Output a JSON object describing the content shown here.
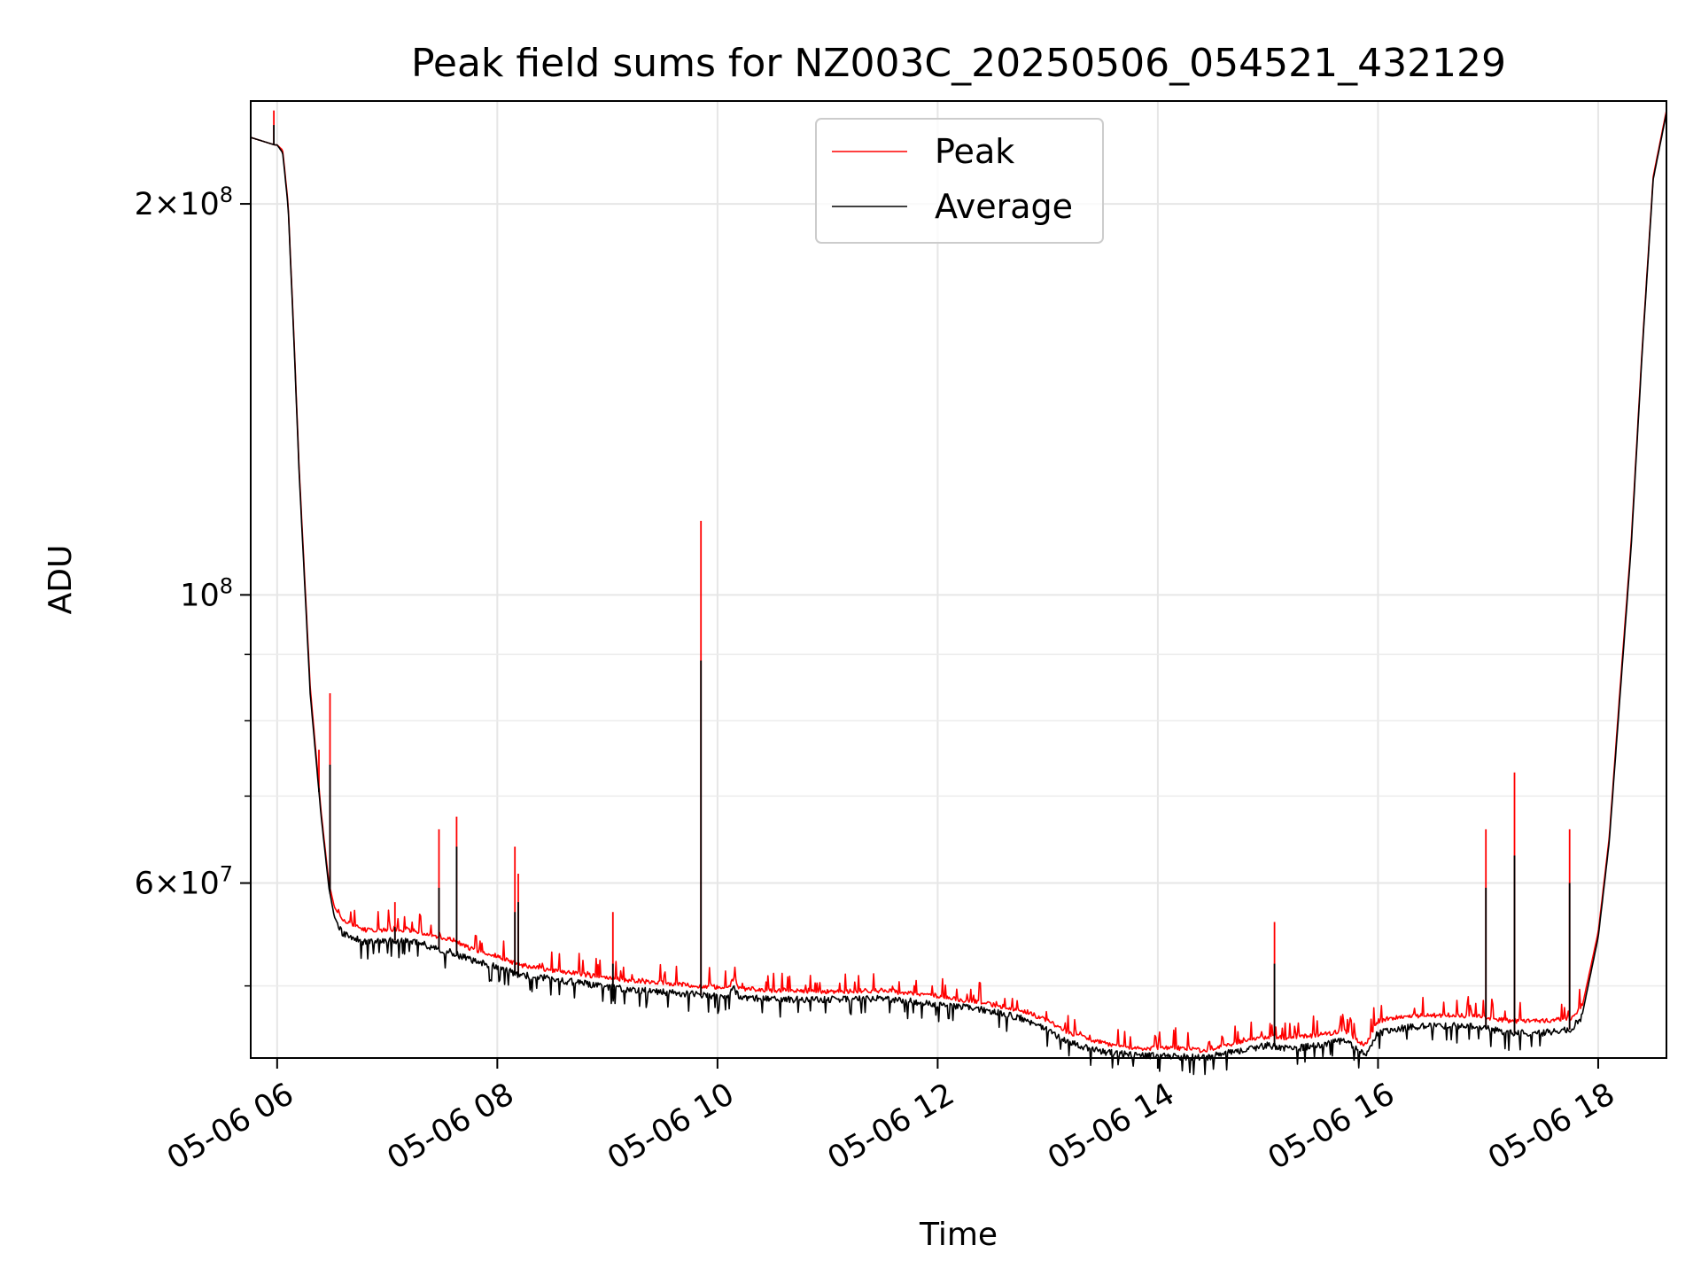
{
  "chart_data": {
    "type": "line",
    "title": "Peak field sums for NZ003C_20250506_054521_432129",
    "xlabel": "Time",
    "ylabel": "ADU",
    "x_unit": "hour of 2025-05-06",
    "xlim": [
      5.76,
      18.62
    ],
    "ylim": [
      44000000,
      240000000
    ],
    "y_scale": "log",
    "grid": true,
    "legend": {
      "position": "top-center",
      "entries": [
        "Peak",
        "Average"
      ]
    },
    "x_ticks": [
      {
        "value": 6,
        "label": "05-06 06"
      },
      {
        "value": 8,
        "label": "05-06 08"
      },
      {
        "value": 10,
        "label": "05-06 10"
      },
      {
        "value": 12,
        "label": "05-06 12"
      },
      {
        "value": 14,
        "label": "05-06 14"
      },
      {
        "value": 16,
        "label": "05-06 16"
      },
      {
        "value": 18,
        "label": "05-06 18"
      }
    ],
    "y_major_ticks": [
      {
        "value": 60000000,
        "base": "6×10",
        "exp": "7"
      },
      {
        "value": 100000000,
        "base": "10",
        "exp": "8"
      },
      {
        "value": 200000000,
        "base": "2×10",
        "exp": "8"
      }
    ],
    "y_minor_ticks": [
      50000000,
      70000000,
      80000000,
      90000000
    ],
    "series": [
      {
        "name": "Peak",
        "color": "#ff0000",
        "x": [
          5.76,
          5.98,
          6.0,
          6.05,
          6.1,
          6.15,
          6.2,
          6.3,
          6.4,
          6.47,
          6.52,
          6.6,
          6.8,
          7.0,
          7.2,
          7.4,
          7.6,
          7.8,
          8.0,
          8.2,
          8.5,
          8.8,
          9.0,
          9.3,
          9.6,
          9.85,
          9.9,
          10.1,
          10.15,
          10.2,
          10.5,
          11.0,
          11.5,
          11.9,
          12.3,
          12.6,
          12.8,
          13.0,
          13.2,
          13.5,
          13.8,
          14.0,
          14.2,
          14.4,
          14.6,
          14.8,
          15.0,
          15.2,
          15.5,
          15.7,
          15.88,
          16.0,
          16.3,
          16.6,
          16.9,
          17.2,
          17.5,
          17.75,
          17.85,
          18.0,
          18.1,
          18.2,
          18.3,
          18.4,
          18.5,
          18.62
        ],
        "y": [
          225000000,
          222000000,
          222000000,
          220000000,
          200000000,
          160000000,
          125000000,
          85000000,
          68000000,
          60000000,
          57500000,
          56000000,
          55000000,
          55000000,
          55000000,
          54500000,
          54000000,
          53000000,
          52500000,
          51700000,
          51200000,
          50800000,
          50500000,
          50200000,
          50000000,
          49800000,
          49700000,
          49700000,
          50500000,
          49600000,
          49400000,
          49300000,
          49400000,
          49000000,
          48500000,
          48000000,
          47600000,
          46800000,
          45800000,
          45000000,
          44600000,
          44600000,
          44600000,
          44400000,
          44800000,
          45200000,
          45500000,
          45400000,
          45700000,
          46000000,
          44800000,
          46800000,
          47200000,
          47300000,
          47200000,
          46800000,
          46800000,
          47000000,
          48000000,
          55000000,
          65000000,
          85000000,
          110000000,
          155000000,
          210000000,
          236000000
        ]
      },
      {
        "name": "Average",
        "color": "#000000",
        "x": [
          5.76,
          5.98,
          6.0,
          6.05,
          6.1,
          6.15,
          6.2,
          6.3,
          6.4,
          6.47,
          6.52,
          6.6,
          6.8,
          7.0,
          7.2,
          7.4,
          7.6,
          7.8,
          8.0,
          8.2,
          8.5,
          8.8,
          9.0,
          9.3,
          9.6,
          9.85,
          9.9,
          10.1,
          10.15,
          10.2,
          10.5,
          11.0,
          11.5,
          11.9,
          12.3,
          12.6,
          12.8,
          13.0,
          13.2,
          13.5,
          13.8,
          14.0,
          14.2,
          14.4,
          14.6,
          14.8,
          15.0,
          15.2,
          15.5,
          15.7,
          15.88,
          16.0,
          16.3,
          16.6,
          16.9,
          17.2,
          17.5,
          17.75,
          17.85,
          18.0,
          18.1,
          18.2,
          18.3,
          18.4,
          18.5,
          18.62
        ],
        "y": [
          225000000,
          222000000,
          222000000,
          219000000,
          199000000,
          159000000,
          124000000,
          84000000,
          67500000,
          59500000,
          56500000,
          54800000,
          54000000,
          54200000,
          54200000,
          53600000,
          53000000,
          52200000,
          51700000,
          51000000,
          50600000,
          50200000,
          49900000,
          49600000,
          49400000,
          49200000,
          49100000,
          49100000,
          49800000,
          49000000,
          48800000,
          48800000,
          48900000,
          48500000,
          48100000,
          47600000,
          47100000,
          46200000,
          45200000,
          44500000,
          44200000,
          44200000,
          44100000,
          44000000,
          44300000,
          44700000,
          45000000,
          44700000,
          45100000,
          45400000,
          44200000,
          46000000,
          46500000,
          46600000,
          46500000,
          46000000,
          46000000,
          46300000,
          47300000,
          54500000,
          64500000,
          84000000,
          109000000,
          154000000,
          209000000,
          235000000
        ]
      }
    ],
    "spikes": [
      {
        "x": 5.97,
        "peak": 236000000,
        "avg": 230000000
      },
      {
        "x": 6.38,
        "peak": 76000000,
        "avg": 71000000
      },
      {
        "x": 6.48,
        "peak": 84000000,
        "avg": 74000000
      },
      {
        "x": 7.07,
        "peak": 58000000,
        "avg": 55500000
      },
      {
        "x": 7.47,
        "peak": 66000000,
        "avg": 59500000
      },
      {
        "x": 7.63,
        "peak": 67500000,
        "avg": 64000000
      },
      {
        "x": 8.16,
        "peak": 64000000,
        "avg": 57000000
      },
      {
        "x": 8.19,
        "peak": 61000000,
        "avg": 58000000
      },
      {
        "x": 9.05,
        "peak": 57000000,
        "avg": 52000000
      },
      {
        "x": 9.85,
        "peak": 114000000,
        "avg": 89000000
      },
      {
        "x": 15.06,
        "peak": 56000000,
        "avg": 52000000
      },
      {
        "x": 16.98,
        "peak": 66000000,
        "avg": 59500000
      },
      {
        "x": 17.24,
        "peak": 73000000,
        "avg": 63000000
      },
      {
        "x": 17.74,
        "peak": 66000000,
        "avg": 60000000
      }
    ]
  }
}
